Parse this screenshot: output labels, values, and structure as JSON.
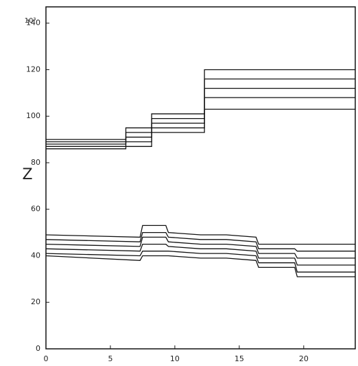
{
  "chart_data": {
    "type": "line",
    "ylabel": "Z",
    "y_exponent": "10³",
    "xlim": [
      0,
      24
    ],
    "xticks": [
      0,
      5,
      10,
      15,
      20
    ],
    "ylim": [
      0,
      147
    ],
    "yticks": [
      0,
      20,
      40,
      60,
      80,
      100,
      120,
      140
    ],
    "grid": false,
    "color": "#111",
    "series": [
      {
        "x": [
          0,
          6.2,
          6.2,
          8.2,
          8.2,
          12.3,
          12.3,
          24
        ],
        "values": [
          90,
          90,
          95,
          95,
          101,
          101,
          120,
          120
        ]
      },
      {
        "x": [
          0,
          6.2,
          6.2,
          8.2,
          8.2,
          12.3,
          12.3,
          24
        ],
        "values": [
          89,
          89,
          93,
          93,
          99,
          99,
          116,
          116
        ]
      },
      {
        "x": [
          0,
          6.2,
          6.2,
          8.2,
          8.2,
          12.3,
          12.3,
          24
        ],
        "values": [
          88,
          88,
          91,
          91,
          97,
          97,
          112,
          112
        ]
      },
      {
        "x": [
          0,
          6.2,
          6.2,
          8.2,
          8.2,
          12.3,
          12.3,
          24
        ],
        "values": [
          87,
          87,
          89,
          89,
          95,
          95,
          108,
          108
        ]
      },
      {
        "x": [
          0,
          6.2,
          6.2,
          8.2,
          8.2,
          12.3,
          12.3,
          24
        ],
        "values": [
          86,
          86,
          87,
          87,
          93,
          93,
          103,
          103
        ]
      },
      {
        "x": [
          0,
          7.3,
          7.5,
          9.3,
          9.5,
          12,
          14,
          16.3,
          16.5,
          19.3,
          19.5,
          24
        ],
        "values": [
          49,
          48,
          53,
          53,
          50,
          49,
          49,
          48,
          45,
          45,
          45,
          45
        ]
      },
      {
        "x": [
          0,
          7.3,
          7.5,
          9.3,
          9.5,
          12,
          14,
          16.3,
          16.5,
          19.3,
          19.5,
          24
        ],
        "values": [
          47,
          46,
          50,
          50,
          48,
          47,
          47,
          46,
          43,
          43,
          42,
          42
        ]
      },
      {
        "x": [
          0,
          7.3,
          7.5,
          9.3,
          9.5,
          12,
          14,
          16.3,
          16.5,
          19.3,
          19.5,
          24
        ],
        "values": [
          45,
          44,
          48,
          48,
          46,
          45,
          45,
          44,
          41,
          41,
          39,
          39
        ]
      },
      {
        "x": [
          0,
          7.3,
          7.5,
          9.3,
          9.5,
          12,
          14,
          16.3,
          16.5,
          19.3,
          19.5,
          24
        ],
        "values": [
          43,
          42,
          45,
          45,
          44,
          43,
          43,
          42,
          39,
          39,
          36,
          36
        ]
      },
      {
        "x": [
          0,
          7.3,
          7.5,
          9.3,
          9.5,
          12,
          14,
          16.3,
          16.5,
          19.3,
          19.5,
          24
        ],
        "values": [
          41,
          40,
          42,
          42,
          42,
          41,
          41,
          40,
          37,
          37,
          33,
          33
        ]
      },
      {
        "x": [
          0,
          7.3,
          7.5,
          9.3,
          9.5,
          12,
          14,
          16.3,
          16.5,
          19.3,
          19.5,
          24
        ],
        "values": [
          40,
          38,
          40,
          40,
          40,
          39,
          39,
          38,
          35,
          35,
          31,
          31
        ]
      }
    ]
  }
}
